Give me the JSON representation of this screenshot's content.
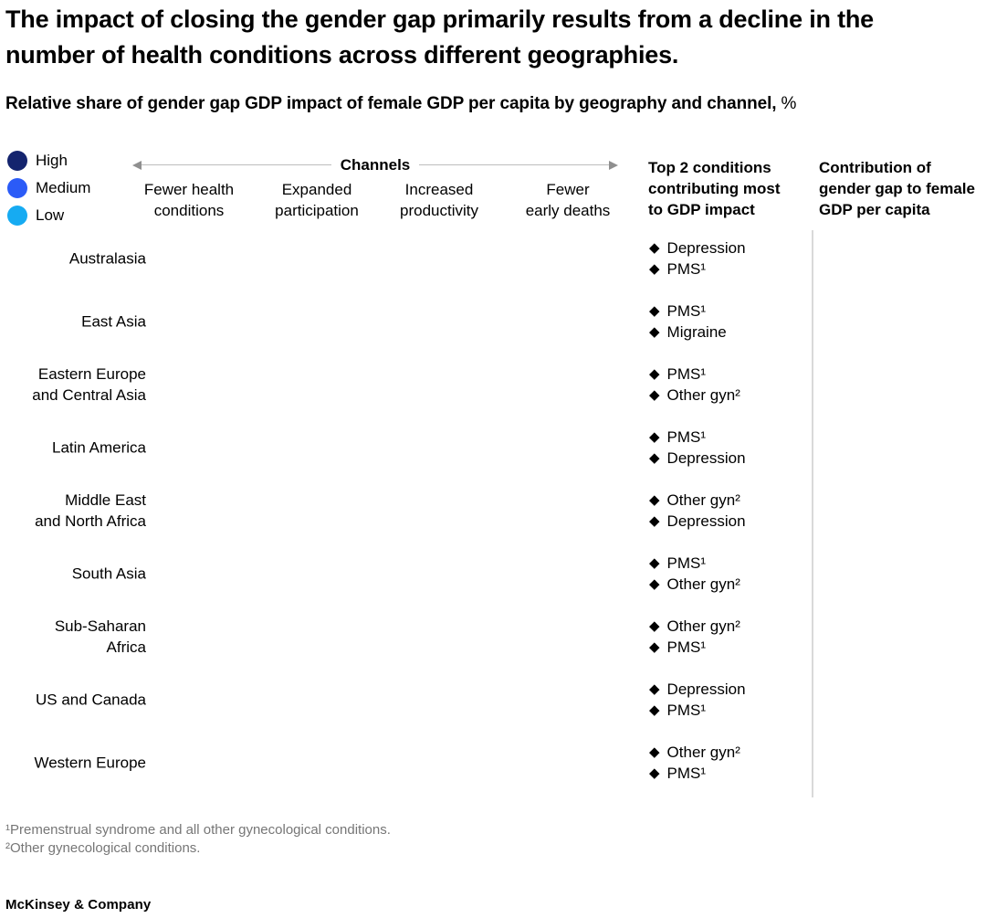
{
  "title": "The impact of closing the gender gap primarily results from a decline in the number of health conditions across different geographies.",
  "subtitle": {
    "text": "Relative share of gender gap GDP impact of female GDP per capita by geography and channel,",
    "unit": "%"
  },
  "legend": {
    "items": [
      {
        "label": "High",
        "color": "#14246e"
      },
      {
        "label": "Medium",
        "color": "#2b5bf7"
      },
      {
        "label": "Low",
        "color": "#16abf2"
      }
    ]
  },
  "channels_axis": {
    "label": "Channels"
  },
  "channel_columns": [
    {
      "lines": [
        "Fewer health",
        "conditions"
      ]
    },
    {
      "lines": [
        "Expanded",
        "participation"
      ]
    },
    {
      "lines": [
        "Increased",
        "productivity"
      ]
    },
    {
      "lines": [
        "Fewer",
        "early deaths"
      ]
    }
  ],
  "right_headers": {
    "conditions": {
      "lines": [
        "Top 2 conditions",
        "contributing most",
        "to GDP impact"
      ]
    },
    "contribution": {
      "lines": [
        "Contribution of",
        "gender gap to female",
        "GDP per capita"
      ]
    }
  },
  "rows": [
    {
      "geography": [
        "Australasia"
      ],
      "top_conditions": [
        "Depression",
        "PMS¹"
      ]
    },
    {
      "geography": [
        "East Asia"
      ],
      "top_conditions": [
        "PMS¹",
        "Migraine"
      ]
    },
    {
      "geography": [
        "Eastern Europe",
        "and Central Asia"
      ],
      "top_conditions": [
        "PMS¹",
        "Other gyn²"
      ]
    },
    {
      "geography": [
        "Latin America"
      ],
      "top_conditions": [
        "PMS¹",
        "Depression"
      ]
    },
    {
      "geography": [
        "Middle East",
        "and North Africa"
      ],
      "top_conditions": [
        "Other gyn²",
        "Depression"
      ]
    },
    {
      "geography": [
        "South Asia"
      ],
      "top_conditions": [
        "PMS¹",
        "Other gyn²"
      ]
    },
    {
      "geography": [
        "Sub-Saharan",
        "Africa"
      ],
      "top_conditions": [
        "Other gyn²",
        "PMS¹"
      ]
    },
    {
      "geography": [
        "US and Canada"
      ],
      "top_conditions": [
        "Depression",
        "PMS¹"
      ]
    },
    {
      "geography": [
        "Western Europe"
      ],
      "top_conditions": [
        "Other gyn²",
        "PMS¹"
      ]
    }
  ],
  "icons": {
    "bullet": "diamond-icon",
    "bullet_glyph": "◆"
  },
  "footnotes": [
    "¹Premenstrual syndrome and all other gynecological conditions.",
    "²Other gynecological conditions."
  ],
  "footer": "McKinsey & Company",
  "chart_data": {
    "type": "table",
    "title": "The impact of closing the gender gap primarily results from a decline in the number of health conditions across different geographies.",
    "subtitle": "Relative share of gender gap GDP impact of female GDP per capita by geography and channel, %",
    "legend_scale": [
      "High",
      "Medium",
      "Low"
    ],
    "columns": [
      "Fewer health conditions",
      "Expanded participation",
      "Increased productivity",
      "Fewer early deaths"
    ],
    "extra_columns": [
      "Top 2 conditions contributing most to GDP impact",
      "Contribution of gender gap to female GDP per capita"
    ],
    "categories": [
      "Australasia",
      "East Asia",
      "Eastern Europe and Central Asia",
      "Latin America",
      "Middle East and North Africa",
      "South Asia",
      "Sub-Saharan Africa",
      "US and Canada",
      "Western Europe"
    ],
    "top_2_conditions": [
      [
        "Depression",
        "PMS¹"
      ],
      [
        "PMS¹",
        "Migraine"
      ],
      [
        "PMS¹",
        "Other gyn²"
      ],
      [
        "PMS¹",
        "Depression"
      ],
      [
        "Other gyn²",
        "Depression"
      ],
      [
        "PMS¹",
        "Other gyn²"
      ],
      [
        "Other gyn²",
        "PMS¹"
      ],
      [
        "Depression",
        "PMS¹"
      ],
      [
        "Other gyn²",
        "PMS¹"
      ]
    ]
  }
}
